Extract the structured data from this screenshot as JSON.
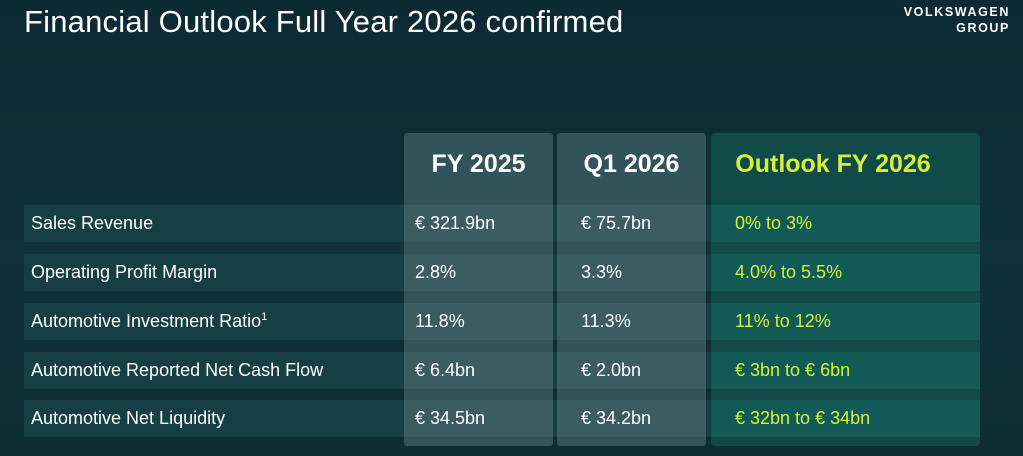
{
  "title": "Financial Outlook Full Year 2026 confirmed",
  "brand": {
    "line1": "VOLKSWAGEN",
    "line2": "GROUP"
  },
  "columns": {
    "fy2025": "FY 2025",
    "q12026": "Q1 2026",
    "outlook": "Outlook FY 2026"
  },
  "rows": [
    {
      "label": "Sales Revenue",
      "fy2025": "€ 321.9bn",
      "q12026": "€ 75.7bn",
      "outlook": "0% to 3%"
    },
    {
      "label": "Operating Profit Margin",
      "fy2025": "2.8%",
      "q12026": "3.3%",
      "outlook": "4.0% to 5.5%"
    },
    {
      "label": "Automotive Investment Ratio",
      "footnote": "1",
      "fy2025": "11.8%",
      "q12026": "11.3%",
      "outlook": "11% to 12%"
    },
    {
      "label": "Automotive Reported Net Cash Flow",
      "fy2025": "€ 6.4bn",
      "q12026": "€ 2.0bn",
      "outlook": "€ 3bn to € 6bn"
    },
    {
      "label": "Automotive Net Liquidity",
      "fy2025": "€ 34.5bn",
      "q12026": "€ 34.2bn",
      "outlook": "€ 32bn to € 34bn"
    }
  ],
  "colors": {
    "background": "#0f313a",
    "accent": "#d3f03a",
    "band": "#163f45",
    "outlook_column": "#114a49"
  }
}
